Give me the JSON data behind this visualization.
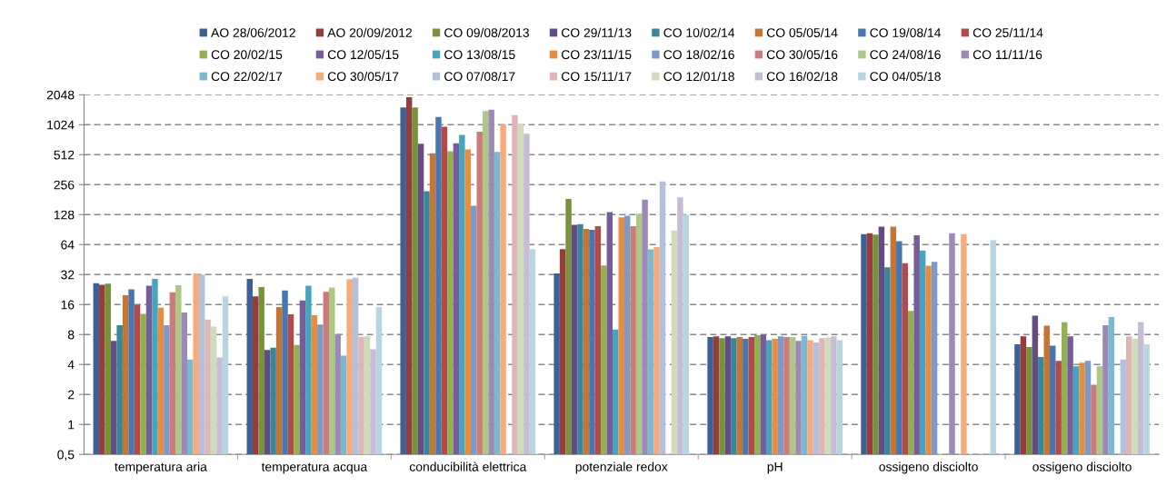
{
  "chart_data": {
    "type": "bar",
    "log": "y",
    "grid": "y",
    "legend": "top",
    "categories": [
      "temperatura aria",
      "temperatura acqua",
      "conducibilità elettrica",
      "potenziale redox",
      "pH",
      "ossigeno disciolto",
      "ossigeno disciolto"
    ],
    "ylim": [
      0.5,
      2048
    ],
    "yticks": [
      {
        "value": 0.5,
        "label": "0,5"
      },
      1,
      2,
      4,
      8,
      16,
      32,
      64,
      128,
      256,
      512,
      1024,
      2048
    ],
    "series": [
      {
        "name": "AO 28/06/2012",
        "color": "#3c6196",
        "values": [
          26.2,
          29,
          1528,
          32.9,
          7.56,
          81.7,
          6.4
        ]
      },
      {
        "name": "AO 20/09/2012",
        "color": "#963c3a",
        "values": [
          25.3,
          19.3,
          1940,
          57.7,
          7.66,
          83.4,
          7.66
        ]
      },
      {
        "name": "CO 09/08/2013",
        "color": "#78923c",
        "values": [
          25.9,
          24.0,
          1528,
          184,
          7.36,
          80.6,
          6.0
        ]
      },
      {
        "name": "CO 29/11/13",
        "color": "#634c84",
        "values": [
          6.9,
          5.6,
          660,
          101,
          7.66,
          97,
          12.4
        ]
      },
      {
        "name": "CO 10/02/14",
        "color": "#37879b",
        "values": [
          9.9,
          5.9,
          220,
          103,
          7.36,
          37.8,
          4.75
        ]
      },
      {
        "name": "CO 05/05/14",
        "color": "#c57632",
        "values": [
          19.8,
          15.1,
          530,
          92,
          7.56,
          97,
          9.8
        ]
      },
      {
        "name": "CO 19/08/14",
        "color": "#4776b0",
        "values": [
          22.8,
          22.2,
          1226,
          90,
          7.26,
          69.2,
          6.2
        ]
      },
      {
        "name": "CO 25/11/14",
        "color": "#b34a48",
        "values": [
          15.8,
          12.8,
          976,
          98,
          7.56,
          41.7,
          4.35
        ]
      },
      {
        "name": "CO 20/02/15",
        "color": "#91b051",
        "values": [
          12.9,
          6.3,
          556,
          39.6,
          7.87,
          13.8,
          10.6
        ]
      },
      {
        "name": "CO 12/05/15",
        "color": "#765c99",
        "values": [
          24.7,
          17.6,
          666,
          136,
          7.97,
          79.5,
          7.66
        ]
      },
      {
        "name": "CO 13/08/15",
        "color": "#45a4be",
        "values": [
          29,
          24.7,
          810,
          9.0,
          7.0,
          56,
          3.83
        ]
      },
      {
        "name": "CO 23/11/15",
        "color": "#e88d40",
        "values": [
          14.9,
          12.5,
          577,
          120,
          7.26,
          39.3,
          4.18
        ]
      },
      {
        "name": "CO 18/02/16",
        "color": "#7b9ac8",
        "values": [
          9.9,
          10.1,
          157,
          125,
          7.66,
          42.9,
          4.35
        ]
      },
      {
        "name": "CO 30/05/16",
        "color": "#cb7b7a",
        "values": [
          21.2,
          21.5,
          873,
          98,
          7.56,
          null,
          2.5
        ]
      },
      {
        "name": "CO 24/08/16",
        "color": "#adc785",
        "values": [
          25.0,
          23.7,
          1409,
          131,
          7.56,
          null,
          3.83
        ]
      },
      {
        "name": "CO 11/11/16",
        "color": "#9c89b5",
        "values": [
          13.3,
          8.1,
          1448,
          181,
          6.9,
          83.4,
          9.9
        ]
      },
      {
        "name": "CO 22/02/17",
        "color": "#79bad0",
        "values": [
          4.5,
          4.9,
          545,
          57.4,
          7.77,
          null,
          12.0
        ]
      },
      {
        "name": "CO 30/05/17",
        "color": "#f7aa7a",
        "values": [
          32.9,
          28.6,
          1031,
          60.6,
          7.0,
          81.7,
          null
        ]
      },
      {
        "name": "CO 07/08/17",
        "color": "#b4c1dd",
        "values": [
          31.8,
          29.7,
          null,
          276,
          6.67,
          null,
          4.5
        ]
      },
      {
        "name": "CO 15/11/17",
        "color": "#dfb6b5",
        "values": [
          11.3,
          7.6,
          1278,
          null,
          7.36,
          null,
          7.66
        ]
      },
      {
        "name": "CO 12/01/18",
        "color": "#cfdcb9",
        "values": [
          9.6,
          7.7,
          1045,
          88.6,
          7.46,
          null,
          7.26
        ]
      },
      {
        "name": "CO 16/02/18",
        "color": "#c6bcd5",
        "values": [
          4.7,
          5.7,
          832,
          191,
          7.66,
          null,
          10.7
        ]
      },
      {
        "name": "CO 04/05/18",
        "color": "#b6d7e2",
        "values": [
          19.3,
          15.1,
          57.7,
          128,
          7.0,
          70.6,
          6.4
        ]
      }
    ]
  }
}
